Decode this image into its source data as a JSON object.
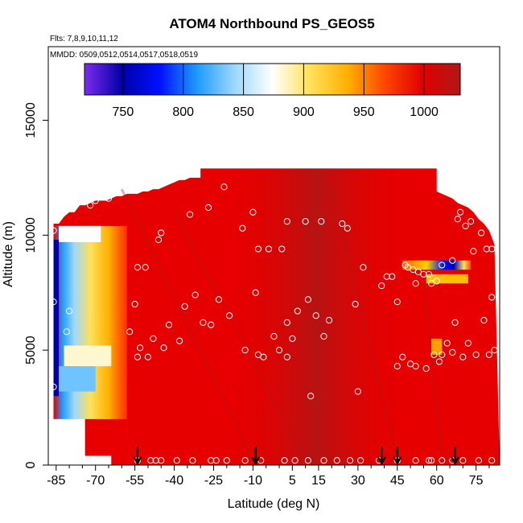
{
  "chart_data": {
    "type": "heatmap",
    "title": "ATOM4 Northbound PS_GEOS5",
    "subtitle_flights": "Flts: 7,8,9,10,11,12",
    "subtitle_dates": "MMDD: 0509,0512,0514,0517,0518,0519",
    "xlabel": "Latitude (deg N)",
    "ylabel": "Altitude (m)",
    "xlim": [
      -88,
      84
    ],
    "ylim": [
      0,
      18200
    ],
    "xticks": [
      -85,
      -70,
      -55,
      -40,
      -25,
      -10,
      5,
      15,
      30,
      45,
      60,
      75
    ],
    "xtick_labels": [
      "-85",
      "-70",
      "-55",
      "-40",
      "-25",
      "-10",
      "5",
      "15",
      "30",
      "45",
      "60",
      "75"
    ],
    "yticks": [
      0,
      5000,
      10000,
      15000
    ],
    "ytick_labels": [
      "0",
      "5000",
      "10000",
      "15000"
    ],
    "colorbar": {
      "range": [
        718,
        1030
      ],
      "ticks": [
        750,
        800,
        850,
        900,
        950,
        1000
      ],
      "tick_labels": [
        "750",
        "800",
        "850",
        "900",
        "950",
        "1000"
      ],
      "colors": [
        "#7b2cf0",
        "#0000a8",
        "#0010ff",
        "#1f9bff",
        "#9cd8ff",
        "#ffffff",
        "#ffe15a",
        "#ffb000",
        "#ff4500",
        "#e00000",
        "#b01818"
      ]
    },
    "legend": "colorbar top",
    "field_summary": "pressure mostly 990-1030 hPa (red) across domain; low values (730-900 hPa) along southern edge near -85 to -75 and a thin band near 60 deg N at 8700 m",
    "curtain_top_by_latitude": {
      "lat": [
        -86,
        -84,
        -82,
        -80,
        -78,
        -76,
        -74,
        -72,
        -70,
        -68,
        -66,
        -64,
        -62,
        -60,
        -58,
        -56,
        -54,
        -52,
        -50,
        -48,
        -46,
        -44,
        -42,
        -40,
        -38,
        -36,
        -34,
        -32,
        -30,
        82,
        80,
        78,
        76,
        74,
        72,
        70,
        68,
        66,
        64,
        62,
        60
      ],
      "alt": [
        10500,
        10500,
        10800,
        11000,
        11000,
        11300,
        11300,
        11400,
        11500,
        11500,
        11500,
        11600,
        11700,
        11700,
        11800,
        11800,
        11800,
        11900,
        11900,
        12000,
        12000,
        12100,
        12200,
        12300,
        12400,
        12400,
        12500,
        12500,
        12500,
        9600,
        10200,
        10500,
        10700,
        11000,
        11200,
        11300,
        11400,
        11600,
        11700,
        11800,
        11900
      ]
    },
    "flight_obs": [
      {
        "lat": -86,
        "alt": 10200
      },
      {
        "lat": -86,
        "alt": 7100
      },
      {
        "lat": -86,
        "alt": 3400
      },
      {
        "lat": -81,
        "alt": 5800
      },
      {
        "lat": -80,
        "alt": 6700
      },
      {
        "lat": -79,
        "alt": 1400
      },
      {
        "lat": -72,
        "alt": 11300
      },
      {
        "lat": -70,
        "alt": 11500
      },
      {
        "lat": -65,
        "alt": 11600
      },
      {
        "lat": -57,
        "alt": 5800
      },
      {
        "lat": -55,
        "alt": 7000
      },
      {
        "lat": -54,
        "alt": 8600
      },
      {
        "lat": -53,
        "alt": 5100
      },
      {
        "lat": -54,
        "alt": 4700
      },
      {
        "lat": -51,
        "alt": 8600
      },
      {
        "lat": -50,
        "alt": 4700
      },
      {
        "lat": -48,
        "alt": 5500
      },
      {
        "lat": -46,
        "alt": 9800
      },
      {
        "lat": -45,
        "alt": 10100
      },
      {
        "lat": -44,
        "alt": 5100
      },
      {
        "lat": -42,
        "alt": 6100
      },
      {
        "lat": -38,
        "alt": 5400
      },
      {
        "lat": -36,
        "alt": 6900
      },
      {
        "lat": -34,
        "alt": 10900
      },
      {
        "lat": -32,
        "alt": 7400
      },
      {
        "lat": -29,
        "alt": 6200
      },
      {
        "lat": -27,
        "alt": 11200
      },
      {
        "lat": -26,
        "alt": 6100
      },
      {
        "lat": -23,
        "alt": 7200
      },
      {
        "lat": -21,
        "alt": 12100
      },
      {
        "lat": -19,
        "alt": 6500
      },
      {
        "lat": -14,
        "alt": 10300
      },
      {
        "lat": -13,
        "alt": 5000
      },
      {
        "lat": -10,
        "alt": 11000
      },
      {
        "lat": -9,
        "alt": 7500
      },
      {
        "lat": -8,
        "alt": 9400
      },
      {
        "lat": -8,
        "alt": 4800
      },
      {
        "lat": -6,
        "alt": 4700
      },
      {
        "lat": -4,
        "alt": 9400
      },
      {
        "lat": -2,
        "alt": 5600
      },
      {
        "lat": 0,
        "alt": 5000
      },
      {
        "lat": 1,
        "alt": 9400
      },
      {
        "lat": 3,
        "alt": 4700
      },
      {
        "lat": 3,
        "alt": 6200
      },
      {
        "lat": 3,
        "alt": 10600
      },
      {
        "lat": 5,
        "alt": 5500
      },
      {
        "lat": 7,
        "alt": 6700
      },
      {
        "lat": 10,
        "alt": 10600
      },
      {
        "lat": 11,
        "alt": 7200
      },
      {
        "lat": 12,
        "alt": 3000
      },
      {
        "lat": 14,
        "alt": 6500
      },
      {
        "lat": 16,
        "alt": 10600
      },
      {
        "lat": 17,
        "alt": 5600
      },
      {
        "lat": 19,
        "alt": 6300
      },
      {
        "lat": 24,
        "alt": 10500
      },
      {
        "lat": 26,
        "alt": 10300
      },
      {
        "lat": 29,
        "alt": 7000
      },
      {
        "lat": 30,
        "alt": 3200
      },
      {
        "lat": 32,
        "alt": 8600
      },
      {
        "lat": 39,
        "alt": 7800
      },
      {
        "lat": 41,
        "alt": 8200
      },
      {
        "lat": 43,
        "alt": 8200
      },
      {
        "lat": 45,
        "alt": 7100
      },
      {
        "lat": 45,
        "alt": 4300
      },
      {
        "lat": 47,
        "alt": 4700
      },
      {
        "lat": 48,
        "alt": 8700
      },
      {
        "lat": 49,
        "alt": 8600
      },
      {
        "lat": 50,
        "alt": 4400
      },
      {
        "lat": 51,
        "alt": 8500
      },
      {
        "lat": 52,
        "alt": 4300
      },
      {
        "lat": 52,
        "alt": 7900
      },
      {
        "lat": 53,
        "alt": 8400
      },
      {
        "lat": 55,
        "alt": 8300
      },
      {
        "lat": 56,
        "alt": 4200
      },
      {
        "lat": 57,
        "alt": 8300
      },
      {
        "lat": 58,
        "alt": 7900
      },
      {
        "lat": 59,
        "alt": 4800
      },
      {
        "lat": 60,
        "alt": 8000
      },
      {
        "lat": 61,
        "alt": 4500
      },
      {
        "lat": 62,
        "alt": 4800
      },
      {
        "lat": 62,
        "alt": 8700
      },
      {
        "lat": 64,
        "alt": 5300
      },
      {
        "lat": 66,
        "alt": 4900
      },
      {
        "lat": 66,
        "alt": 8900
      },
      {
        "lat": 67,
        "alt": 6200
      },
      {
        "lat": 68,
        "alt": 10700
      },
      {
        "lat": 69,
        "alt": 11000
      },
      {
        "lat": 70,
        "alt": 4700
      },
      {
        "lat": 71,
        "alt": 10400
      },
      {
        "lat": 72,
        "alt": 5300
      },
      {
        "lat": 73,
        "alt": 10600
      },
      {
        "lat": 74,
        "alt": 9300
      },
      {
        "lat": 75,
        "alt": 4800
      },
      {
        "lat": 77,
        "alt": 10100
      },
      {
        "lat": 78,
        "alt": 6300
      },
      {
        "lat": 79,
        "alt": 9400
      },
      {
        "lat": 80,
        "alt": 4800
      },
      {
        "lat": 81,
        "alt": 7300
      },
      {
        "lat": 81,
        "alt": 9400
      },
      {
        "lat": 82,
        "alt": 5000
      },
      {
        "lat": -54,
        "alt": 200
      },
      {
        "lat": -49,
        "alt": 200
      },
      {
        "lat": -45,
        "alt": 200
      },
      {
        "lat": -39,
        "alt": 200
      },
      {
        "lat": -33,
        "alt": 200
      },
      {
        "lat": -26,
        "alt": 200
      },
      {
        "lat": -20,
        "alt": 200
      },
      {
        "lat": -13,
        "alt": 200
      },
      {
        "lat": -7,
        "alt": 200
      },
      {
        "lat": 2,
        "alt": 200
      },
      {
        "lat": 11,
        "alt": 200
      },
      {
        "lat": 17,
        "alt": 200
      },
      {
        "lat": 22,
        "alt": 200
      },
      {
        "lat": 31,
        "alt": 200
      },
      {
        "lat": 38,
        "alt": 200
      },
      {
        "lat": 45,
        "alt": 200
      },
      {
        "lat": 52,
        "alt": 200
      },
      {
        "lat": 58,
        "alt": 200
      },
      {
        "lat": 62,
        "alt": 200
      },
      {
        "lat": 66,
        "alt": 200
      },
      {
        "lat": 70,
        "alt": 200
      },
      {
        "lat": 76,
        "alt": 200
      },
      {
        "lat": 81,
        "alt": 200
      },
      {
        "lat": -47,
        "alt": 200
      },
      {
        "lat": -24,
        "alt": 200
      },
      {
        "lat": 6,
        "alt": 200
      },
      {
        "lat": 27,
        "alt": 200
      },
      {
        "lat": 57,
        "alt": 200
      }
    ],
    "arrow_markers_lat": [
      -54,
      -9,
      39,
      45,
      67
    ]
  }
}
